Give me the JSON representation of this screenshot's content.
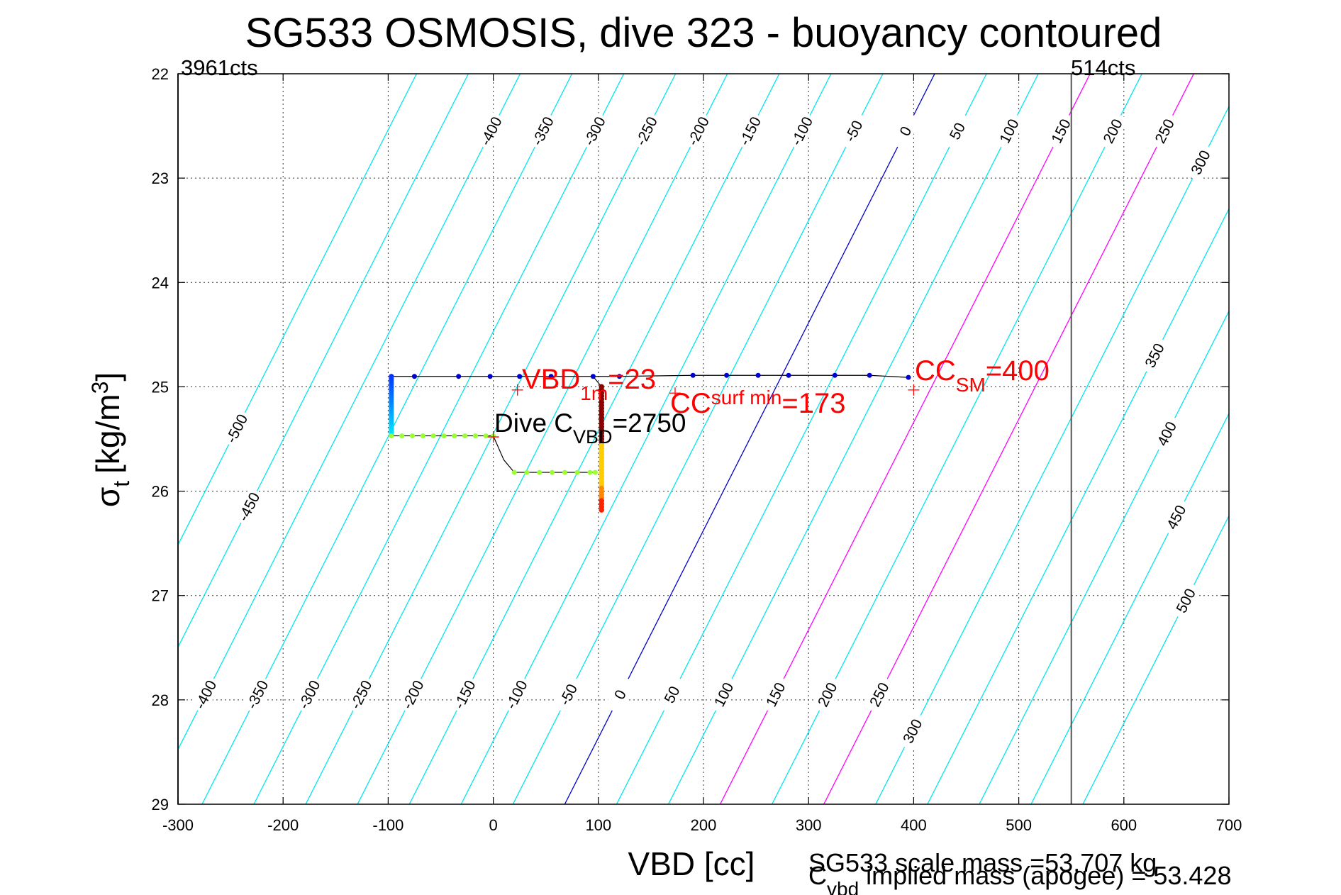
{
  "chart_data": {
    "type": "line",
    "title": "SG533 OSMOSIS, dive 323 - buoyancy contoured",
    "xlabel": "VBD [cc]",
    "ylabel_main": "σ",
    "ylabel_sub": "t",
    "ylabel_units": "[kg/m",
    "ylabel_sup": "3",
    "ylabel_close": "]",
    "xlim": [
      -300,
      700
    ],
    "ylim": [
      22,
      29
    ],
    "y_reversed": true,
    "grid": true,
    "xticks": [
      -300,
      -200,
      -100,
      0,
      100,
      200,
      300,
      400,
      500,
      600,
      700
    ],
    "yticks": [
      22,
      23,
      24,
      25,
      26,
      27,
      28,
      29
    ],
    "xtick_labels": [
      "-300",
      "-200",
      "-100",
      "0",
      "100",
      "200",
      "300",
      "400",
      "500",
      "600",
      "700"
    ],
    "ytick_labels": [
      "22",
      "23",
      "24",
      "25",
      "26",
      "27",
      "28",
      "29"
    ],
    "limit_labels": {
      "left": "3961cts",
      "right": "514cts"
    },
    "limit_lines_x": [
      -300,
      550
    ],
    "contours": {
      "values": [
        -500,
        -450,
        -400,
        -350,
        -300,
        -250,
        -200,
        -150,
        -100,
        -50,
        0,
        50,
        100,
        150,
        200,
        250,
        300,
        350,
        400,
        450,
        500
      ],
      "upper_labels": [
        "-400",
        "-350",
        "-300",
        "-250",
        "-200",
        "-150",
        "-100",
        "-50",
        "0",
        "50",
        "100",
        "150",
        "200",
        "250"
      ],
      "lower_labels": [
        "-400",
        "-350",
        "-300",
        "-250",
        "-200",
        "-150",
        "-100",
        "-50",
        "0",
        "50",
        "100",
        "150",
        "200",
        "250"
      ],
      "left_labels": [
        "-500",
        "-450"
      ],
      "right_labels": [
        "300",
        "350",
        "400",
        "450",
        "500"
      ],
      "lower_right_label": "300",
      "colors": {
        "default": "#00e5ee",
        "zero": "#0000cc",
        "highlight": "#ff00ff"
      }
    },
    "dive_path": {
      "top_points": [
        [
          -97,
          24.9
        ],
        [
          -75,
          24.9
        ],
        [
          -33,
          24.9
        ],
        [
          -3,
          24.9
        ],
        [
          25,
          24.9
        ],
        [
          55,
          24.9
        ],
        [
          95,
          24.9
        ],
        [
          120,
          24.9
        ],
        [
          190,
          24.89
        ],
        [
          222,
          24.89
        ],
        [
          252,
          24.89
        ],
        [
          281,
          24.89
        ],
        [
          325,
          24.89
        ],
        [
          358,
          24.89
        ],
        [
          395,
          24.91
        ]
      ],
      "left_column_x": -97,
      "left_column_range": [
        24.9,
        25.46
      ],
      "mid1_points": [
        [
          -97,
          25.47
        ],
        [
          -87,
          25.47
        ],
        [
          -77,
          25.47
        ],
        [
          -67,
          25.47
        ],
        [
          -57,
          25.47
        ],
        [
          -47,
          25.47
        ],
        [
          -37,
          25.47
        ],
        [
          -27,
          25.47
        ],
        [
          -17,
          25.47
        ],
        [
          -7,
          25.47
        ],
        [
          0,
          25.47
        ]
      ],
      "mid2_points": [
        [
          20,
          25.82
        ],
        [
          32,
          25.82
        ],
        [
          44,
          25.82
        ],
        [
          56,
          25.82
        ],
        [
          68,
          25.82
        ],
        [
          80,
          25.82
        ],
        [
          92,
          25.82
        ],
        [
          97,
          25.82
        ]
      ],
      "right_column_x": 103,
      "right_column_range": [
        25.0,
        26.18
      ],
      "colors": {
        "top": "#0000cc",
        "left_top": "#0033ff",
        "left_bottom": "#00e5ff",
        "mid": "#99ff33",
        "column_top": "#8b0000",
        "column_mid": "#ffcc00",
        "column_bottom": "#ff2200",
        "line": "#000000"
      }
    },
    "markers": [
      {
        "x": 23,
        "y": 25.03
      },
      {
        "x": 173,
        "y": 25.06
      },
      {
        "x": 400,
        "y": 25.03
      },
      {
        "x": 0,
        "y": 25.48
      }
    ],
    "annotations": {
      "vbd1m": {
        "main": "VBD",
        "sub": "1m",
        "value": "=23"
      },
      "ccsurf": {
        "main": "CC",
        "sub": "surf min",
        "value": "=173"
      },
      "ccsm": {
        "main": "CC",
        "sub": "SM",
        "value": "=400"
      },
      "divecvbd": {
        "main": "Dive C",
        "sub": "VBD",
        "value": "=2750"
      }
    },
    "footer": {
      "line1": "SG533 scale mass =53.707 kg",
      "line2_main": "C",
      "line2_sub": "vbd",
      "line2_rest": " implied mass (apogee) = 53.428"
    }
  }
}
